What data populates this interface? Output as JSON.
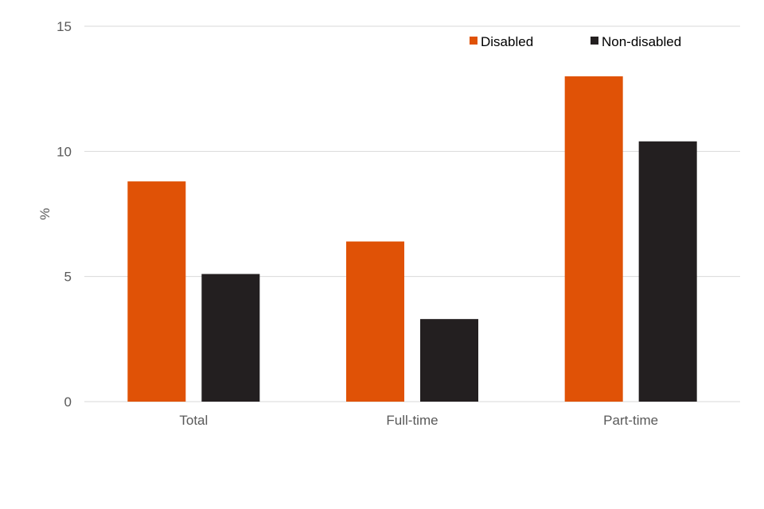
{
  "chart_data": {
    "type": "bar",
    "title": "",
    "xlabel": "",
    "ylabel": "%",
    "ylim": [
      0,
      15
    ],
    "yticks": [
      0,
      5,
      10,
      15
    ],
    "grid": true,
    "legend_position": "top-right",
    "categories": [
      "Total",
      "Full-time",
      "Part-time"
    ],
    "series": [
      {
        "name": "Disabled",
        "color": "#E05206",
        "values": [
          8.8,
          6.4,
          13.0
        ]
      },
      {
        "name": "Non-disabled",
        "color": "#231F20",
        "values": [
          5.1,
          3.3,
          10.4
        ]
      }
    ]
  }
}
